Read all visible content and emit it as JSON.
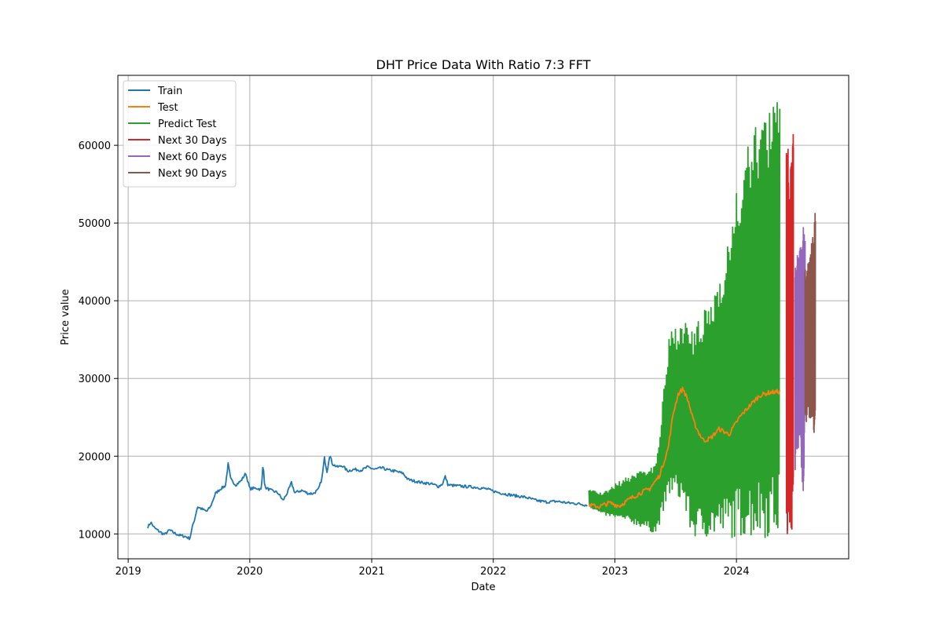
{
  "chart_data": {
    "type": "line",
    "title": "DHT Price Data With Ratio 7:3  FFT",
    "xlabel": "Date",
    "ylabel": "Price value",
    "x_axis_type": "date",
    "xlim": [
      "2018-12-01",
      "2024-12-03"
    ],
    "ylim": [
      6800,
      69000
    ],
    "x_ticks": [
      "2019-01-01",
      "2020-01-01",
      "2021-01-01",
      "2022-01-01",
      "2023-01-01",
      "2024-01-01"
    ],
    "x_tick_labels": [
      "2019",
      "2020",
      "2021",
      "2022",
      "2023",
      "2024"
    ],
    "y_ticks": [
      10000,
      20000,
      30000,
      40000,
      50000,
      60000
    ],
    "y_tick_labels": [
      "10000",
      "20000",
      "30000",
      "40000",
      "50000",
      "60000"
    ],
    "grid": true,
    "legend_position": "upper-left",
    "series": [
      {
        "name": "Train",
        "color": "#1f77b4",
        "points": [
          [
            "2019-03-01",
            10900
          ],
          [
            "2019-03-10",
            11500
          ],
          [
            "2019-03-20",
            10800
          ],
          [
            "2019-04-05",
            10300
          ],
          [
            "2019-04-20",
            9900
          ],
          [
            "2019-05-05",
            10500
          ],
          [
            "2019-05-20",
            10100
          ],
          [
            "2019-06-05",
            9800
          ],
          [
            "2019-06-20",
            9700
          ],
          [
            "2019-07-05",
            9400
          ],
          [
            "2019-07-12",
            10800
          ],
          [
            "2019-07-20",
            12000
          ],
          [
            "2019-07-28",
            13500
          ],
          [
            "2019-08-10",
            13200
          ],
          [
            "2019-08-25",
            12900
          ],
          [
            "2019-09-05",
            13500
          ],
          [
            "2019-09-20",
            15200
          ],
          [
            "2019-10-05",
            15800
          ],
          [
            "2019-10-20",
            16200
          ],
          [
            "2019-10-28",
            19000
          ],
          [
            "2019-11-05",
            17000
          ],
          [
            "2019-11-20",
            16300
          ],
          [
            "2019-12-05",
            16800
          ],
          [
            "2019-12-20",
            17800
          ],
          [
            "2020-01-01",
            15800
          ],
          [
            "2020-01-20",
            15900
          ],
          [
            "2020-02-05",
            15700
          ],
          [
            "2020-02-10",
            19300
          ],
          [
            "2020-02-15",
            16000
          ],
          [
            "2020-03-05",
            15600
          ],
          [
            "2020-03-25",
            15300
          ],
          [
            "2020-04-10",
            14300
          ],
          [
            "2020-04-25",
            15500
          ],
          [
            "2020-05-05",
            16600
          ],
          [
            "2020-05-15",
            15300
          ],
          [
            "2020-06-05",
            15600
          ],
          [
            "2020-06-25",
            15200
          ],
          [
            "2020-07-10",
            15200
          ],
          [
            "2020-07-25",
            15700
          ],
          [
            "2020-08-05",
            17200
          ],
          [
            "2020-08-12",
            19800
          ],
          [
            "2020-08-20",
            18000
          ],
          [
            "2020-08-28",
            20200
          ],
          [
            "2020-09-05",
            19000
          ],
          [
            "2020-09-20",
            18600
          ],
          [
            "2020-10-05",
            18800
          ],
          [
            "2020-10-20",
            18100
          ],
          [
            "2020-11-10",
            18300
          ],
          [
            "2020-12-01",
            18200
          ],
          [
            "2020-12-20",
            18600
          ],
          [
            "2021-01-10",
            18300
          ],
          [
            "2021-02-01",
            18500
          ],
          [
            "2021-02-20",
            18200
          ],
          [
            "2021-03-10",
            18100
          ],
          [
            "2021-04-05",
            17800
          ],
          [
            "2021-04-20",
            17000
          ],
          [
            "2021-05-10",
            16800
          ],
          [
            "2021-06-01",
            16600
          ],
          [
            "2021-06-20",
            16500
          ],
          [
            "2021-07-10",
            16300
          ],
          [
            "2021-07-20",
            16100
          ],
          [
            "2021-08-01",
            16400
          ],
          [
            "2021-08-10",
            17400
          ],
          [
            "2021-08-18",
            16300
          ],
          [
            "2021-09-10",
            16200
          ],
          [
            "2021-10-10",
            16100
          ],
          [
            "2021-11-10",
            16000
          ],
          [
            "2021-12-10",
            15800
          ],
          [
            "2022-01-10",
            15400
          ],
          [
            "2022-02-10",
            15100
          ],
          [
            "2022-03-10",
            14900
          ],
          [
            "2022-04-10",
            14700
          ],
          [
            "2022-05-10",
            14300
          ],
          [
            "2022-06-10",
            14100
          ],
          [
            "2022-07-10",
            14200
          ],
          [
            "2022-08-10",
            14000
          ],
          [
            "2022-09-10",
            13900
          ],
          [
            "2022-10-10",
            13700
          ]
        ]
      },
      {
        "name": "Test",
        "color": "#ff7f0e",
        "points": [
          [
            "2022-10-15",
            13700
          ],
          [
            "2022-11-15",
            13500
          ],
          [
            "2022-12-15",
            14000
          ],
          [
            "2023-01-15",
            13600
          ],
          [
            "2023-02-15",
            14500
          ],
          [
            "2023-03-15",
            15200
          ],
          [
            "2023-04-15",
            15800
          ],
          [
            "2023-05-15",
            17500
          ],
          [
            "2023-06-10",
            21000
          ],
          [
            "2023-06-25",
            25500
          ],
          [
            "2023-07-10",
            28000
          ],
          [
            "2023-07-25",
            28700
          ],
          [
            "2023-08-10",
            27000
          ],
          [
            "2023-08-25",
            24500
          ],
          [
            "2023-09-10",
            23000
          ],
          [
            "2023-09-25",
            22000
          ],
          [
            "2023-10-15",
            22300
          ],
          [
            "2023-11-10",
            23500
          ],
          [
            "2023-12-10",
            22800
          ],
          [
            "2024-01-10",
            25000
          ],
          [
            "2024-02-10",
            26500
          ],
          [
            "2024-03-10",
            27800
          ],
          [
            "2024-04-10",
            28200
          ],
          [
            "2024-05-10",
            28300
          ]
        ]
      },
      {
        "name": "Predict Test",
        "color": "#2ca02c",
        "points": [
          [
            "2022-10-15",
            15800
          ],
          [
            "2022-11-25",
            15000
          ],
          [
            "2023-01-05",
            15600
          ],
          [
            "2023-02-15",
            15800
          ],
          [
            "2023-03-25",
            15000
          ],
          [
            "2023-05-05",
            16000
          ],
          [
            "2023-06-15",
            27000
          ],
          [
            "2023-07-25",
            31000
          ],
          [
            "2023-09-05",
            26000
          ],
          [
            "2023-10-15",
            28000
          ],
          [
            "2023-11-25",
            31000
          ],
          [
            "2024-01-05",
            31000
          ],
          [
            "2024-02-15",
            33000
          ],
          [
            "2024-03-25",
            34000
          ],
          [
            "2024-05-10",
            38000
          ]
        ],
        "low": [
          [
            "2022-10-15",
            13500
          ],
          [
            "2022-11-25",
            12500
          ],
          [
            "2023-01-05",
            12000
          ],
          [
            "2023-02-15",
            11500
          ],
          [
            "2023-03-25",
            10800
          ],
          [
            "2023-05-05",
            10000
          ],
          [
            "2023-06-15",
            15000
          ],
          [
            "2023-07-25",
            14000
          ],
          [
            "2023-08-20",
            9500
          ],
          [
            "2023-10-15",
            9500
          ],
          [
            "2023-12-01",
            9500
          ],
          [
            "2024-02-15",
            9500
          ],
          [
            "2024-05-10",
            9500
          ]
        ],
        "high": [
          [
            "2022-10-15",
            15800
          ],
          [
            "2022-11-25",
            15200
          ],
          [
            "2023-01-05",
            16500
          ],
          [
            "2023-02-15",
            17500
          ],
          [
            "2023-03-25",
            18500
          ],
          [
            "2023-05-05",
            19000
          ],
          [
            "2023-06-15",
            36000
          ],
          [
            "2023-07-25",
            38000
          ],
          [
            "2023-08-20",
            36000
          ],
          [
            "2023-10-15",
            40000
          ],
          [
            "2023-12-01",
            47000
          ],
          [
            "2024-01-20",
            58000
          ],
          [
            "2024-03-10",
            64000
          ],
          [
            "2024-05-10",
            66000
          ]
        ]
      },
      {
        "name": "Next 30 Days",
        "color": "#d62728",
        "points": [
          [
            "2024-05-30",
            27000
          ],
          [
            "2024-06-20",
            30000
          ]
        ],
        "low": [
          [
            "2024-05-28",
            9500
          ],
          [
            "2024-06-10",
            11000
          ],
          [
            "2024-06-20",
            9500
          ],
          [
            "2024-06-30",
            18000
          ]
        ],
        "high": [
          [
            "2024-05-28",
            63500
          ],
          [
            "2024-06-10",
            56000
          ],
          [
            "2024-06-20",
            63000
          ],
          [
            "2024-06-30",
            50000
          ]
        ]
      },
      {
        "name": "Next 60 Days",
        "color": "#9467bd",
        "points": [
          [
            "2024-06-25",
            38000
          ],
          [
            "2024-07-25",
            40000
          ]
        ],
        "low": [
          [
            "2024-06-25",
            18000
          ],
          [
            "2024-07-10",
            22000
          ],
          [
            "2024-07-20",
            14000
          ],
          [
            "2024-07-28",
            28000
          ]
        ],
        "high": [
          [
            "2024-06-25",
            45000
          ],
          [
            "2024-07-10",
            47000
          ],
          [
            "2024-07-20",
            50000
          ],
          [
            "2024-07-28",
            49000
          ]
        ]
      },
      {
        "name": "Next 90 Days",
        "color": "#8c564b",
        "points": [
          [
            "2024-07-25",
            35000
          ],
          [
            "2024-08-25",
            36000
          ]
        ],
        "low": [
          [
            "2024-07-25",
            24000
          ],
          [
            "2024-08-10",
            25000
          ],
          [
            "2024-08-25",
            21800
          ]
        ],
        "high": [
          [
            "2024-07-25",
            44500
          ],
          [
            "2024-08-10",
            46000
          ],
          [
            "2024-08-25",
            52000
          ]
        ]
      }
    ]
  }
}
